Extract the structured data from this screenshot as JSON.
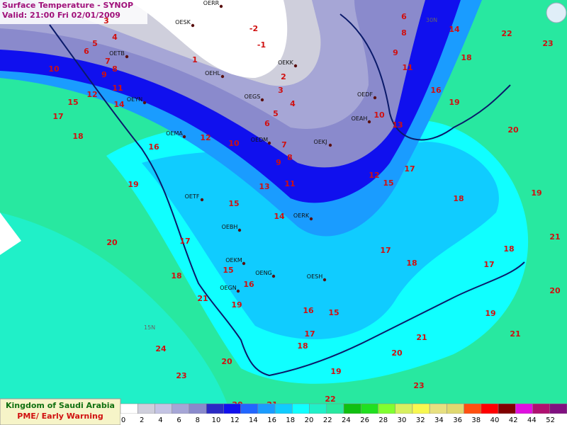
{
  "header": {
    "title": "Surface Temperature  - SYNOP",
    "valid": "Valid: 21:00 Fri 02/01/2009"
  },
  "footer": {
    "org": "Kingdom of Saudi Arabia",
    "dept": "PME/ Early Warning"
  },
  "legend": {
    "colors": [
      "#ffffff",
      "#cfcfdc",
      "#c4c4e4",
      "#a6a6d6",
      "#8a8acc",
      "#2a2ac4",
      "#1010ee",
      "#2266ff",
      "#1a9cff",
      "#10ccff",
      "#10ffff",
      "#20f0c8",
      "#28e8a0",
      "#10c010",
      "#20e020",
      "#80ff30",
      "#d8f060",
      "#f8f850",
      "#e8e080",
      "#e0d870",
      "#ff5010",
      "#ff0000",
      "#800000",
      "#e010e0",
      "#b01070",
      "#801080"
    ],
    "labels": [
      0,
      2,
      4,
      6,
      8,
      10,
      12,
      14,
      16,
      18,
      20,
      22,
      24,
      26,
      28,
      30,
      32,
      34,
      36,
      38,
      40,
      42,
      44,
      52
    ]
  },
  "lat_labels": [
    "30N",
    "15N"
  ],
  "stations": [
    "OERR",
    "OESK",
    "OETB",
    "OEKK",
    "OEHL",
    "OEGS",
    "OEDF",
    "OEAH",
    "OEDM",
    "OEKJ",
    "OEMA",
    "OEYN",
    "OETF",
    "OERK",
    "OEBH",
    "OEKM",
    "OENG",
    "OESH",
    "OEGN"
  ],
  "temperatures": [
    6,
    8,
    9,
    11,
    14,
    18,
    16,
    19,
    22,
    23,
    20,
    19,
    21,
    18,
    17,
    20,
    19,
    21,
    4,
    5,
    6,
    7,
    8,
    9,
    10,
    11,
    12,
    15,
    14,
    17,
    18,
    16,
    12,
    10,
    19,
    20,
    17,
    18,
    21,
    24,
    23,
    20,
    20,
    21,
    22,
    23,
    19,
    20,
    21,
    18,
    17,
    16,
    15,
    19,
    16,
    15,
    15,
    14,
    13,
    11,
    9,
    8,
    7,
    6,
    5,
    4,
    3,
    2,
    1,
    -1,
    -2,
    3,
    12,
    15,
    17,
    18,
    17,
    18,
    13,
    10
  ]
}
